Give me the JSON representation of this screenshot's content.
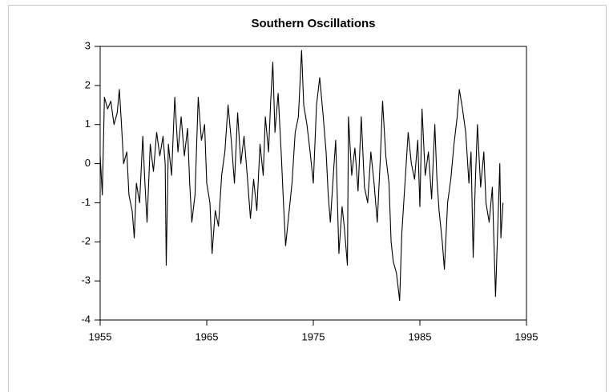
{
  "chart_data": {
    "type": "line",
    "title": "Southern Oscillations",
    "xlim": [
      1955,
      1995
    ],
    "xticks": [
      1955,
      1965,
      1975,
      1985,
      1995
    ],
    "ylim": [
      -4,
      3
    ],
    "yticks": [
      -4,
      -3,
      -2,
      -1,
      0,
      1,
      2,
      3
    ],
    "grid": false,
    "series": [
      {
        "color": "#000000",
        "x": [
          1955.0,
          1955.2,
          1955.4,
          1955.7,
          1956.0,
          1956.3,
          1956.6,
          1956.8,
          1957.0,
          1957.2,
          1957.5,
          1957.7,
          1958.0,
          1958.2,
          1958.4,
          1958.7,
          1959.0,
          1959.2,
          1959.4,
          1959.7,
          1960.0,
          1960.3,
          1960.6,
          1960.9,
          1961.1,
          1961.2,
          1961.4,
          1961.7,
          1962.0,
          1962.3,
          1962.6,
          1962.9,
          1963.2,
          1963.4,
          1963.6,
          1963.9,
          1964.2,
          1964.5,
          1964.8,
          1965.0,
          1965.3,
          1965.5,
          1965.8,
          1966.1,
          1966.4,
          1966.7,
          1967.0,
          1967.3,
          1967.6,
          1967.9,
          1968.2,
          1968.5,
          1968.8,
          1969.1,
          1969.4,
          1969.7,
          1970.0,
          1970.3,
          1970.5,
          1970.8,
          1971.0,
          1971.2,
          1971.4,
          1971.7,
          1972.0,
          1972.2,
          1972.4,
          1972.7,
          1973.0,
          1973.3,
          1973.6,
          1973.9,
          1974.1,
          1974.4,
          1974.7,
          1975.0,
          1975.3,
          1975.6,
          1975.9,
          1976.2,
          1976.4,
          1976.6,
          1976.9,
          1977.1,
          1977.4,
          1977.7,
          1977.9,
          1978.2,
          1978.3,
          1978.6,
          1978.9,
          1979.2,
          1979.5,
          1979.8,
          1980.1,
          1980.4,
          1980.7,
          1981.0,
          1981.3,
          1981.5,
          1981.8,
          1982.1,
          1982.3,
          1982.5,
          1982.8,
          1983.1,
          1983.3,
          1983.6,
          1983.9,
          1984.2,
          1984.5,
          1984.8,
          1985.0,
          1985.2,
          1985.5,
          1985.8,
          1986.1,
          1986.4,
          1986.6,
          1986.8,
          1987.1,
          1987.3,
          1987.6,
          1987.9,
          1988.2,
          1988.5,
          1988.7,
          1989.0,
          1989.3,
          1989.6,
          1989.8,
          1990.0,
          1990.2,
          1990.4,
          1990.7,
          1991.0,
          1991.2,
          1991.5,
          1991.8,
          1992.0,
          1992.1,
          1992.3,
          1992.5,
          1992.6,
          1992.8
        ],
        "values": [
          0.2,
          -0.8,
          1.7,
          1.4,
          1.6,
          1.0,
          1.3,
          1.9,
          1.0,
          0.0,
          0.3,
          -0.8,
          -1.2,
          -1.9,
          -0.5,
          -1.0,
          0.7,
          -0.5,
          -1.5,
          0.5,
          -0.2,
          0.8,
          0.2,
          0.7,
          0.0,
          -2.6,
          0.5,
          -0.3,
          1.7,
          0.3,
          1.2,
          0.2,
          0.9,
          -0.5,
          -1.5,
          -0.8,
          1.7,
          0.6,
          1.0,
          -0.5,
          -1.0,
          -2.3,
          -1.2,
          -1.6,
          -0.3,
          0.3,
          1.5,
          0.6,
          -0.5,
          1.3,
          0.0,
          0.7,
          -0.3,
          -1.4,
          -0.4,
          -1.2,
          0.5,
          -0.3,
          1.2,
          0.3,
          1.6,
          2.6,
          0.8,
          1.8,
          0.2,
          -1.0,
          -2.1,
          -1.3,
          -0.5,
          0.8,
          1.2,
          2.9,
          1.5,
          1.0,
          0.3,
          -0.5,
          1.5,
          2.2,
          1.3,
          0.3,
          -0.8,
          -1.5,
          -0.2,
          0.6,
          -2.3,
          -1.1,
          -1.6,
          -2.6,
          1.2,
          -0.3,
          0.4,
          -0.7,
          1.2,
          -0.6,
          -1.0,
          0.3,
          -0.5,
          -1.5,
          0.2,
          1.6,
          0.2,
          -0.5,
          -2.0,
          -2.5,
          -2.8,
          -3.5,
          -1.8,
          -0.5,
          0.8,
          0.0,
          -0.4,
          0.6,
          -1.1,
          1.4,
          -0.3,
          0.3,
          -0.9,
          1.0,
          -0.4,
          -1.2,
          -2.0,
          -2.7,
          -1.0,
          -0.4,
          0.5,
          1.2,
          1.9,
          1.4,
          0.8,
          -0.5,
          0.3,
          -2.4,
          -0.5,
          1.0,
          -0.6,
          0.3,
          -1.0,
          -1.5,
          -0.6,
          -2.5,
          -3.4,
          -1.7,
          0.0,
          -1.9,
          -1.0
        ]
      }
    ]
  }
}
